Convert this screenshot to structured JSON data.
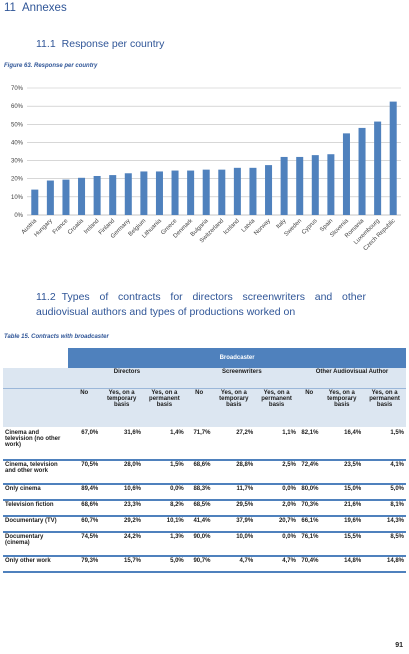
{
  "section": {
    "number": "11",
    "title": "Annexes"
  },
  "subsection1": {
    "number": "11.1",
    "title": "Response per country"
  },
  "figure_caption": "Figure 63. Response per country",
  "chart_data": {
    "type": "bar",
    "categories": [
      "Austria",
      "Hungary",
      "France",
      "Croatia",
      "Ireland",
      "Finland",
      "Germany",
      "Belgium",
      "Lithuania",
      "Greece",
      "Denmark",
      "Bulgaria",
      "Switzerland",
      "Iceland",
      "Latvia",
      "Norway",
      "Italy",
      "Sweden",
      "Cyprus",
      "Spain",
      "Slovenia",
      "Romania",
      "Luxembourg",
      "Czech Republic"
    ],
    "values": [
      14,
      19,
      19.5,
      20.5,
      21.5,
      22,
      23,
      24,
      24,
      24.5,
      24.5,
      25,
      25,
      26,
      26,
      27.5,
      32,
      32,
      33,
      33.5,
      45,
      48,
      51.5,
      62.5
    ],
    "y_ticks": [
      "0%",
      "10%",
      "20%",
      "30%",
      "40%",
      "50%",
      "60%",
      "70%"
    ],
    "ylim": [
      0,
      70
    ],
    "grid": true,
    "bar_color": "#4f81bd"
  },
  "subsection2": {
    "number": "11.2",
    "title": "Types of contracts for directors screenwriters and other audiovisual authors and types of productions worked on"
  },
  "table_caption": "Table 15. Contracts with broadcaster",
  "table": {
    "top_header": "Broadcaster",
    "groups": [
      "Directors",
      "Screenwriters",
      "Other Audiovisual Author"
    ],
    "subheaders": [
      "No",
      "Yes, on a temporary basis",
      "Yes, on a permanent basis"
    ],
    "rows": [
      {
        "label": "Cinema and television (no other work)",
        "values": [
          "67,0%",
          "31,6%",
          "1,4%",
          "71,7%",
          "27,2%",
          "1,1%",
          "82,1%",
          "16,4%",
          "1,5%"
        ]
      },
      {
        "label": "Cinema, television and other work",
        "values": [
          "70,5%",
          "28,0%",
          "1,5%",
          "68,6%",
          "28,8%",
          "2,5%",
          "72,4%",
          "23,5%",
          "4,1%"
        ]
      },
      {
        "label": "Only cinema",
        "values": [
          "89,4%",
          "10,6%",
          "0,0%",
          "88,3%",
          "11,7%",
          "0,0%",
          "80,0%",
          "15,0%",
          "5,0%"
        ]
      },
      {
        "label": "Television fiction",
        "values": [
          "68,6%",
          "23,3%",
          "8,2%",
          "68,5%",
          "29,5%",
          "2,0%",
          "70,3%",
          "21,6%",
          "8,1%"
        ]
      },
      {
        "label": "Documentary (TV)",
        "values": [
          "60,7%",
          "29,2%",
          "10,1%",
          "41,4%",
          "37,9%",
          "20,7%",
          "66,1%",
          "19,6%",
          "14,3%"
        ]
      },
      {
        "label": "Documentary (cinema)",
        "values": [
          "74,5%",
          "24,2%",
          "1,3%",
          "90,0%",
          "10,0%",
          "0,0%",
          "76,1%",
          "15,5%",
          "8,5%"
        ]
      },
      {
        "label": "Only other work",
        "values": [
          "79,3%",
          "15,7%",
          "5,0%",
          "90,7%",
          "4,7%",
          "4,7%",
          "70,4%",
          "14,8%",
          "14,8%"
        ]
      }
    ]
  },
  "page_number": "91"
}
